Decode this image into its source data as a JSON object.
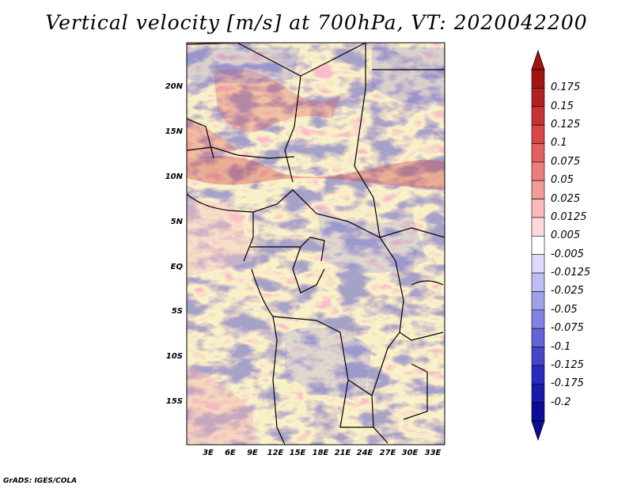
{
  "title": "Vertical velocity [m/s] at 700hPa, VT: 2020042200",
  "credit": "GrADS: IGES/COLA",
  "map": {
    "variable": "Vertical velocity",
    "units": "m/s",
    "level": "700hPa",
    "valid_time": "2020042200",
    "lat_ticks": [
      "20N",
      "15N",
      "10N",
      "5N",
      "EQ",
      "5S",
      "10S",
      "15S"
    ],
    "lon_ticks": [
      "3E",
      "6E",
      "9E",
      "12E",
      "15E",
      "18E",
      "21E",
      "24E",
      "27E",
      "30E",
      "33E"
    ],
    "lat_range": [
      -20,
      24.5
    ],
    "lon_range": [
      0,
      35
    ]
  },
  "colorbar": {
    "labels": [
      "0.175",
      "0.15",
      "0.125",
      "0.1",
      "0.075",
      "0.05",
      "0.025",
      "0.0125",
      "0.005",
      "-0.005",
      "-0.0125",
      "-0.025",
      "-0.05",
      "-0.075",
      "-0.1",
      "-0.125",
      "-0.175",
      "-0.2"
    ],
    "colors": [
      "#a01414",
      "#b42020",
      "#c83232",
      "#d94646",
      "#e46060",
      "#ec7d7d",
      "#f39b9b",
      "#f8baba",
      "#fcdada",
      "#ffffff",
      "#dcdcfa",
      "#bebef2",
      "#a0a0ea",
      "#8282e2",
      "#6464d8",
      "#4646cc",
      "#2a2abe",
      "#1a1aa8",
      "#0c0c96"
    ],
    "top_color": "#a01414",
    "bottom_color": "#0c0c96"
  }
}
